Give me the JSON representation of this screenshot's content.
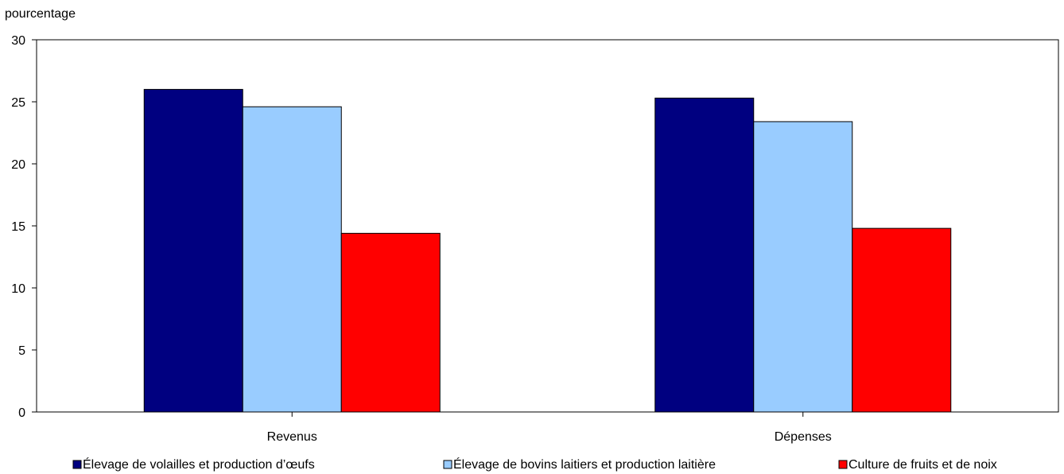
{
  "chart_data": {
    "type": "bar",
    "ylabel": "pourcentage",
    "ylim": [
      0,
      30
    ],
    "yticks": [
      0,
      5,
      10,
      15,
      20,
      25,
      30
    ],
    "categories": [
      "Revenus",
      "Dépenses"
    ],
    "series": [
      {
        "name": "Élevage de volailles et production d’œufs",
        "values": [
          26.0,
          25.3
        ],
        "color": "#000080"
      },
      {
        "name": "Élevage de bovins laitiers et production laitière",
        "values": [
          24.6,
          23.4
        ],
        "color": "#99ccff"
      },
      {
        "name": "Culture de fruits et de noix",
        "values": [
          14.4,
          14.8
        ],
        "color": "#ff0000"
      }
    ],
    "grid": false,
    "legend_position": "bottom"
  }
}
